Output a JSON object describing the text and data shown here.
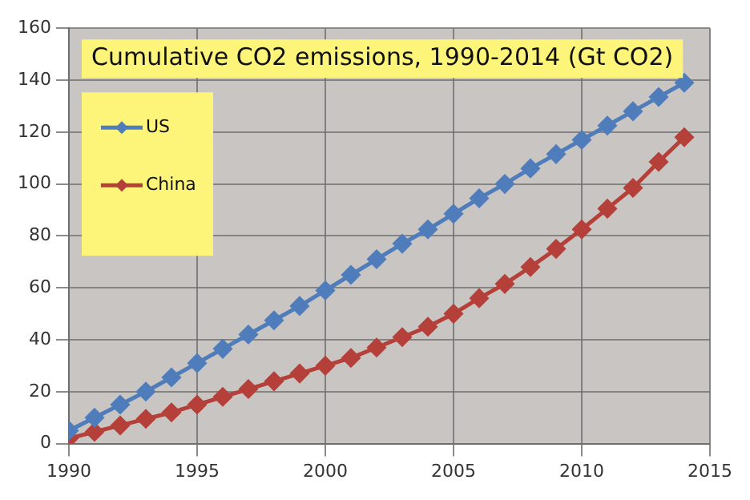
{
  "chart_data": {
    "type": "line",
    "title": "Cumulative CO2 emissions, 1990-2014 (Gt CO2)",
    "x": [
      1990,
      1991,
      1992,
      1993,
      1994,
      1995,
      1996,
      1997,
      1998,
      1999,
      2000,
      2001,
      2002,
      2003,
      2004,
      2005,
      2006,
      2007,
      2008,
      2009,
      2010,
      2011,
      2012,
      2013,
      2014
    ],
    "series": [
      {
        "name": "US",
        "color": "#4f7cba",
        "values": [
          5,
          10,
          15,
          20,
          25.5,
          31,
          36.5,
          42,
          47.5,
          53,
          59,
          65,
          71,
          77,
          82.5,
          88.5,
          94.5,
          100,
          106,
          111.5,
          117,
          122.5,
          128,
          133.5,
          139
        ]
      },
      {
        "name": "China",
        "color": "#b5403a",
        "values": [
          2,
          4.5,
          7,
          9.5,
          12,
          15,
          18,
          21,
          24,
          27,
          30,
          33,
          37,
          41,
          45,
          50,
          56,
          61.5,
          68,
          75,
          82.5,
          90.5,
          98.5,
          108.5,
          118
        ]
      }
    ],
    "xlim": [
      1990,
      2015
    ],
    "xticks": [
      1990,
      1995,
      2000,
      2005,
      2010,
      2015
    ],
    "ylim": [
      0,
      160
    ],
    "yticks": [
      0,
      20,
      40,
      60,
      80,
      100,
      120,
      140,
      160
    ],
    "grid": true,
    "legend": "top left",
    "marker": "diamond",
    "line_style": "solid"
  }
}
